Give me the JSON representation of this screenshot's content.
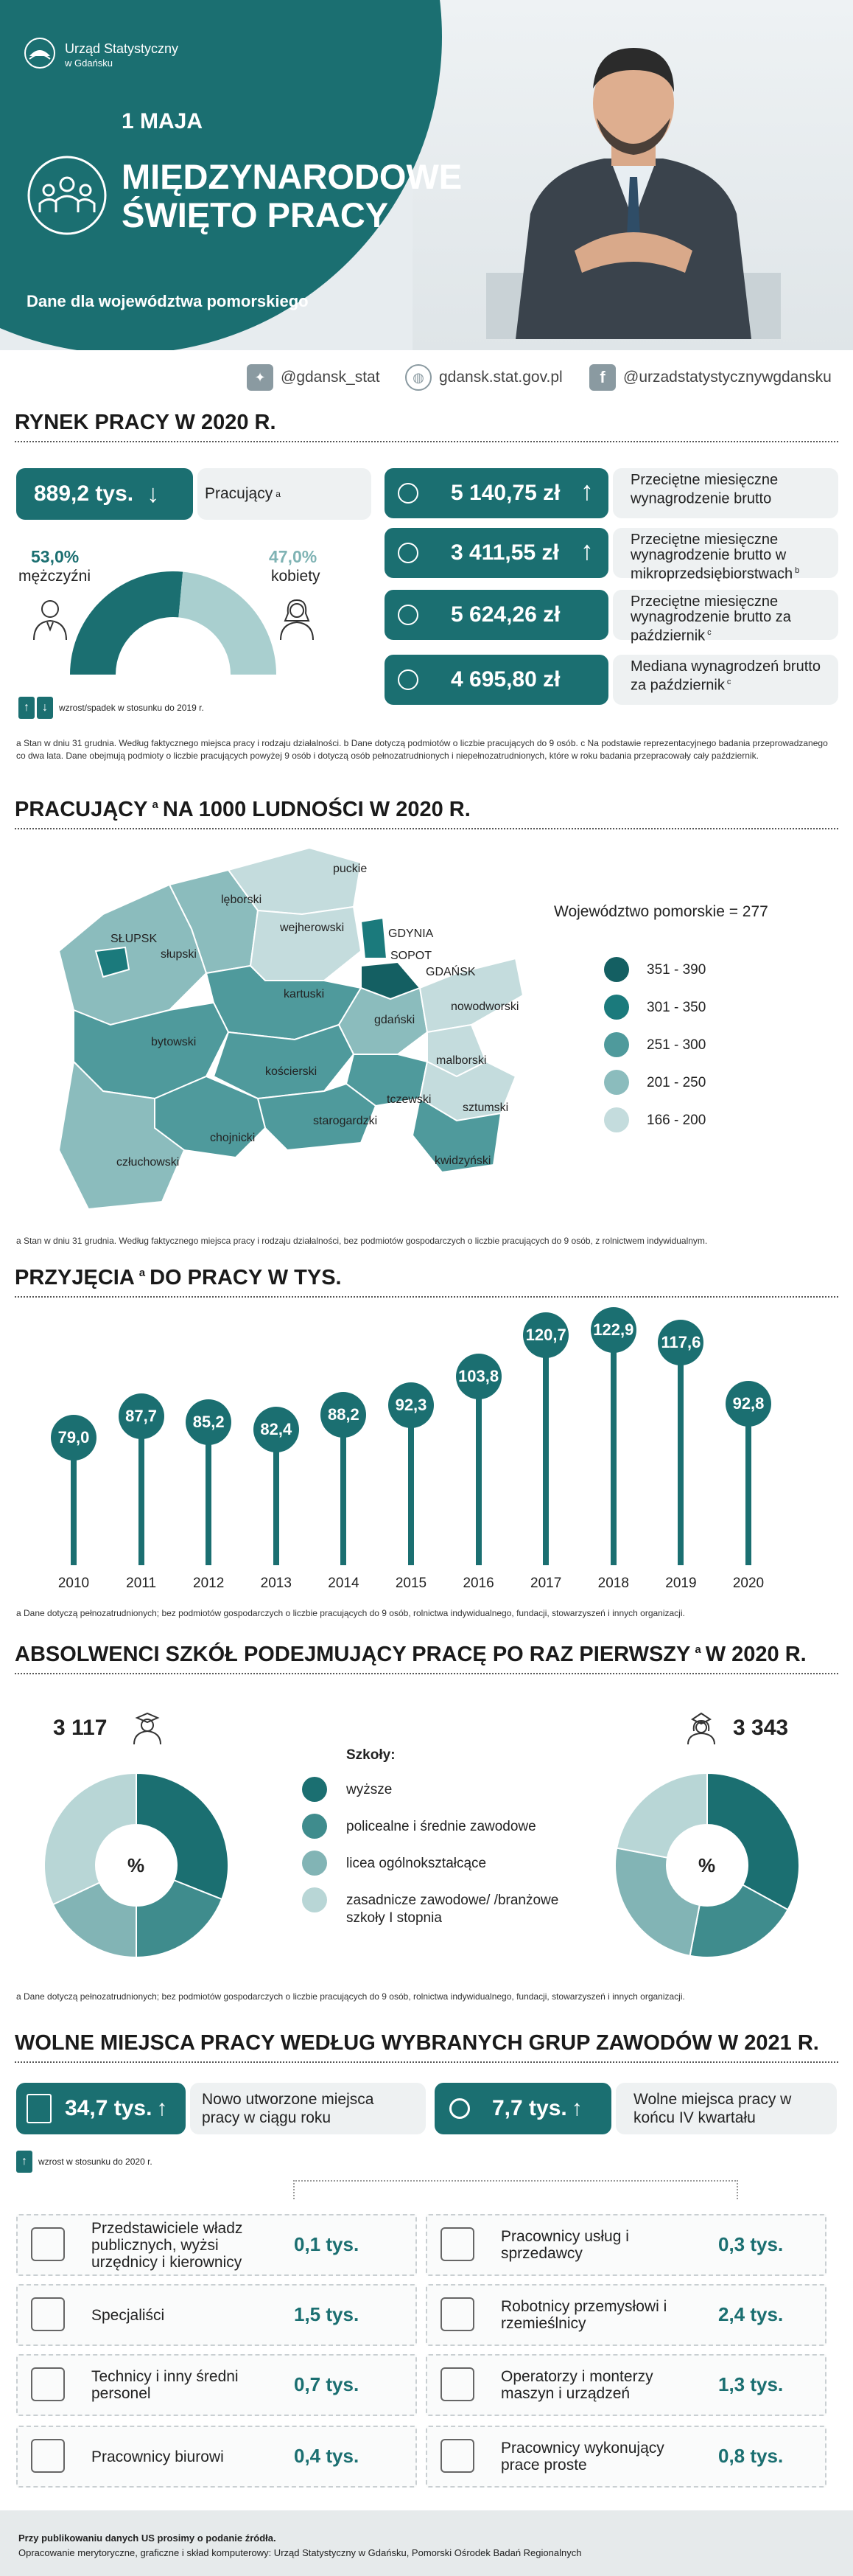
{
  "header": {
    "org_name_1": "Urząd Statystyczny",
    "org_name_2": "w Gdańsku",
    "date": "1 MAJA",
    "title_1": "MIĘDZYNARODOWE",
    "title_2": "ŚWIĘTO PRACY",
    "subtitle": "Dane dla województwa pomorskiego"
  },
  "social": {
    "twitter": "@gdansk_stat",
    "website": "gdansk.stat.gov.pl",
    "facebook": "@urzadstatystycznywgdansku"
  },
  "labor_market": {
    "title": "RYNEK PRACY W 2020 R.",
    "employed_value": "889,2 tys.",
    "employed_label": "Pracujący",
    "employed_sup": "a",
    "men_pct": "53,0%",
    "men_label": "mężczyźni",
    "women_pct": "47,0%",
    "women_label": "kobiety",
    "men_share": 0.53,
    "legend": "wzrost/spadek w stosunku do 2019 r.",
    "stats": [
      {
        "value": "5 140,75 zł",
        "label": "Przeciętne miesięczne wynagrodzenie brutto",
        "sup": ""
      },
      {
        "value": "3 411,55 zł",
        "label": "Przeciętne miesięczne wynagrodzenie brutto w mikroprzedsiębiorstwach",
        "sup": "b"
      },
      {
        "value": "5 624,26 zł",
        "label": "Przeciętne miesięczne wynagrodzenie brutto za październik",
        "sup": "c"
      },
      {
        "value": "4 695,80 zł",
        "label": "Mediana wynagrodzeń brutto za październik",
        "sup": "c"
      }
    ],
    "note": "a Stan w dniu 31 grudnia. Według faktycznego miejsca pracy i rodzaju działalności.   b Dane dotyczą podmiotów o liczbie pracujących do 9 osób.   c Na podstawie reprezentacyjnego badania przeprowadzanego co dwa lata. Dane obejmują podmioty o liczbie pracujących powyżej 9 osób i dotyczą osób pełnozatrudnionych i niepełnozatrudnionych, które w roku badania przepracowały cały październik."
  },
  "map": {
    "title": "PRACUJĄCY",
    "title_sup": "a",
    "title_rest": "NA 1000 LUDNOŚCI W 2020 R.",
    "region_label": "Województwo pomorskie = 277",
    "legend": [
      {
        "label": "351 - 390",
        "color": "#145f62"
      },
      {
        "label": "301 - 350",
        "color": "#1b7a7c"
      },
      {
        "label": "251 - 300",
        "color": "#4f9a9c"
      },
      {
        "label": "201 - 250",
        "color": "#8bbcbd"
      },
      {
        "label": "166 - 200",
        "color": "#c4dcdd"
      }
    ],
    "counties": [
      "puckie",
      "lęborski",
      "wejherowski",
      "SŁUPSK",
      "słupski",
      "GDYNIA",
      "SOPOT",
      "GDAŃSK",
      "kartuski",
      "bytowski",
      "gdański",
      "nowodworski",
      "kościerski",
      "malborski",
      "tczewski",
      "sztumski",
      "starogardzki",
      "chojnicki",
      "człuchowski",
      "kwidzyński"
    ],
    "note": "a Stan w dniu 31 grudnia. Według faktycznego miejsca pracy i rodzaju działalności, bez podmiotów gospodarczych o liczbie pracujących do 9 osób, z rolnictwem indywidualnym."
  },
  "hires": {
    "title": "PRZYJĘCIA",
    "title_sup": "a",
    "title_rest": "DO PRACY W TYS.",
    "chart_data": {
      "type": "bar",
      "categories": [
        "2010",
        "2011",
        "2012",
        "2013",
        "2014",
        "2015",
        "2016",
        "2017",
        "2018",
        "2019",
        "2020"
      ],
      "values": [
        79.0,
        87.7,
        85.2,
        82.4,
        88.2,
        92.3,
        103.8,
        120.7,
        122.9,
        117.6,
        92.8
      ],
      "labels": [
        "79,0",
        "87,7",
        "85,2",
        "82,4",
        "88,2",
        "92,3",
        "103,8",
        "120,7",
        "122,9",
        "117,6",
        "92,8"
      ]
    },
    "note": "a Dane dotyczą pełnozatrudnionych; bez podmiotów gospodarczych o liczbie pracujących do 9 osób, rolnictwa indywidualnego, fundacji, stowarzyszeń i innych organizacji."
  },
  "graduates": {
    "title": "ABSOLWENCI SZKÓŁ PODEJMUJĄCY PRACĘ PO RAZ PIERWSZY",
    "title_sup": "a",
    "title_rest": "W 2020 R.",
    "men_count": "3 117",
    "women_count": "3 343",
    "pct_symbol": "%",
    "legend_title": "Szkoły:",
    "legend": [
      {
        "label": "wyższe",
        "color": "#1b6f71"
      },
      {
        "label": "policealne i średnie zawodowe",
        "color": "#3f8c8d"
      },
      {
        "label": "licea ogólnokształcące",
        "color": "#82b4b5"
      },
      {
        "label": "zasadnicze zawodowe/ /branżowe szkoły I stopnia",
        "color": "#b8d6d6"
      }
    ],
    "chart_data": [
      {
        "type": "pie",
        "name": "mężczyźni",
        "shares": [
          31,
          19,
          18,
          32
        ]
      },
      {
        "type": "pie",
        "name": "kobiety",
        "shares": [
          33,
          20,
          25,
          22
        ]
      }
    ],
    "note": "a Dane dotyczą pełnozatrudnionych; bez podmiotów gospodarczych o liczbie pracujących do 9 osób, rolnictwa indywidualnego, fundacji, stowarzyszeń i innych organizacji."
  },
  "vacancies": {
    "title": "WOLNE MIEJSCA PRACY WEDŁUG WYBRANYCH GRUP ZAWODÓW W 2021 R.",
    "new_value": "34,7 tys.",
    "new_label": "Nowo utworzone miejsca pracy w ciągu roku",
    "free_value": "7,7 tys.",
    "free_label": "Wolne miejsca pracy w końcu IV kwartału",
    "legend": "wzrost w stosunku do 2020 r.",
    "groups": [
      {
        "name": "Przedstawiciele władz publicznych, wyżsi urzędnicy i kierownicy",
        "value": "0,1 tys."
      },
      {
        "name": "Pracownicy usług i sprzedawcy",
        "value": "0,3 tys."
      },
      {
        "name": "Specjaliści",
        "value": "1,5 tys."
      },
      {
        "name": "Robotnicy przemysłowi i rzemieślnicy",
        "value": "2,4 tys."
      },
      {
        "name": "Technicy i inny średni personel",
        "value": "0,7 tys."
      },
      {
        "name": "Operatorzy i monterzy maszyn i urządzeń",
        "value": "1,3 tys."
      },
      {
        "name": "Pracownicy biurowi",
        "value": "0,4 tys."
      },
      {
        "name": "Pracownicy wykonujący prace proste",
        "value": "0,8 tys."
      }
    ]
  },
  "footer": {
    "line1": "Przy publikowaniu danych US prosimy o podanie źródła.",
    "line2": "Opracowanie merytoryczne, graficzne i skład komputerowy: Urząd Statystyczny w Gdańsku, Pomorski Ośrodek Badań Regionalnych"
  }
}
